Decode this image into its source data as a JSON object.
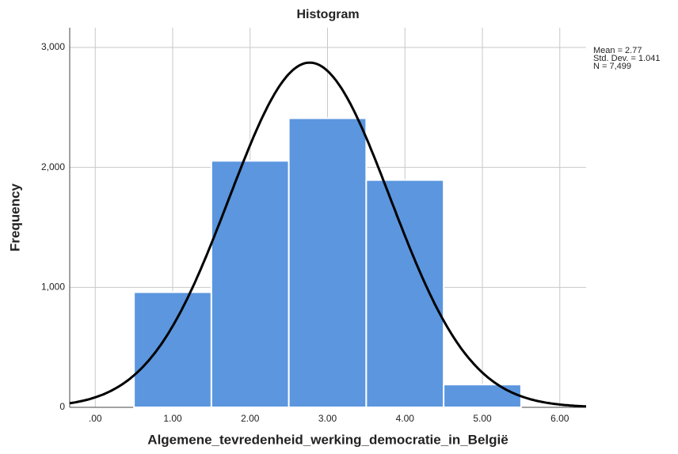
{
  "chart_data": {
    "type": "histogram",
    "title": "Histogram",
    "xlabel": "Algemene_tevredenheid_werking_democratie_in_België",
    "ylabel": "Frequency",
    "bins": [
      0.5,
      1.5,
      2.5,
      3.5,
      4.5,
      5.5
    ],
    "counts": [
      960,
      2055,
      2410,
      1895,
      190
    ],
    "color": "#5b96df",
    "xlim": [
      -0.33,
      6.34
    ],
    "ylim": [
      0,
      3165
    ],
    "xticks": [
      {
        "value": 0,
        "label": ".00"
      },
      {
        "value": 1,
        "label": "1.00"
      },
      {
        "value": 2,
        "label": "2.00"
      },
      {
        "value": 3,
        "label": "3.00"
      },
      {
        "value": 4,
        "label": "4.00"
      },
      {
        "value": 5,
        "label": "5.00"
      },
      {
        "value": 6,
        "label": "6.00"
      }
    ],
    "yticks": [
      0,
      {
        "value": 1000,
        "label": "1,000"
      },
      {
        "value": 2000,
        "label": "2,000"
      },
      {
        "value": 3000,
        "label": "3,000"
      }
    ],
    "grid": true,
    "stats": [
      {
        "label": "Mean = 2.77",
        "value": 2.77
      },
      {
        "label": "Std. Dev. = 1.041",
        "value": 1.041
      },
      {
        "label": "N = 7,499",
        "value": 7499
      }
    ],
    "curve_color": "#000000"
  }
}
